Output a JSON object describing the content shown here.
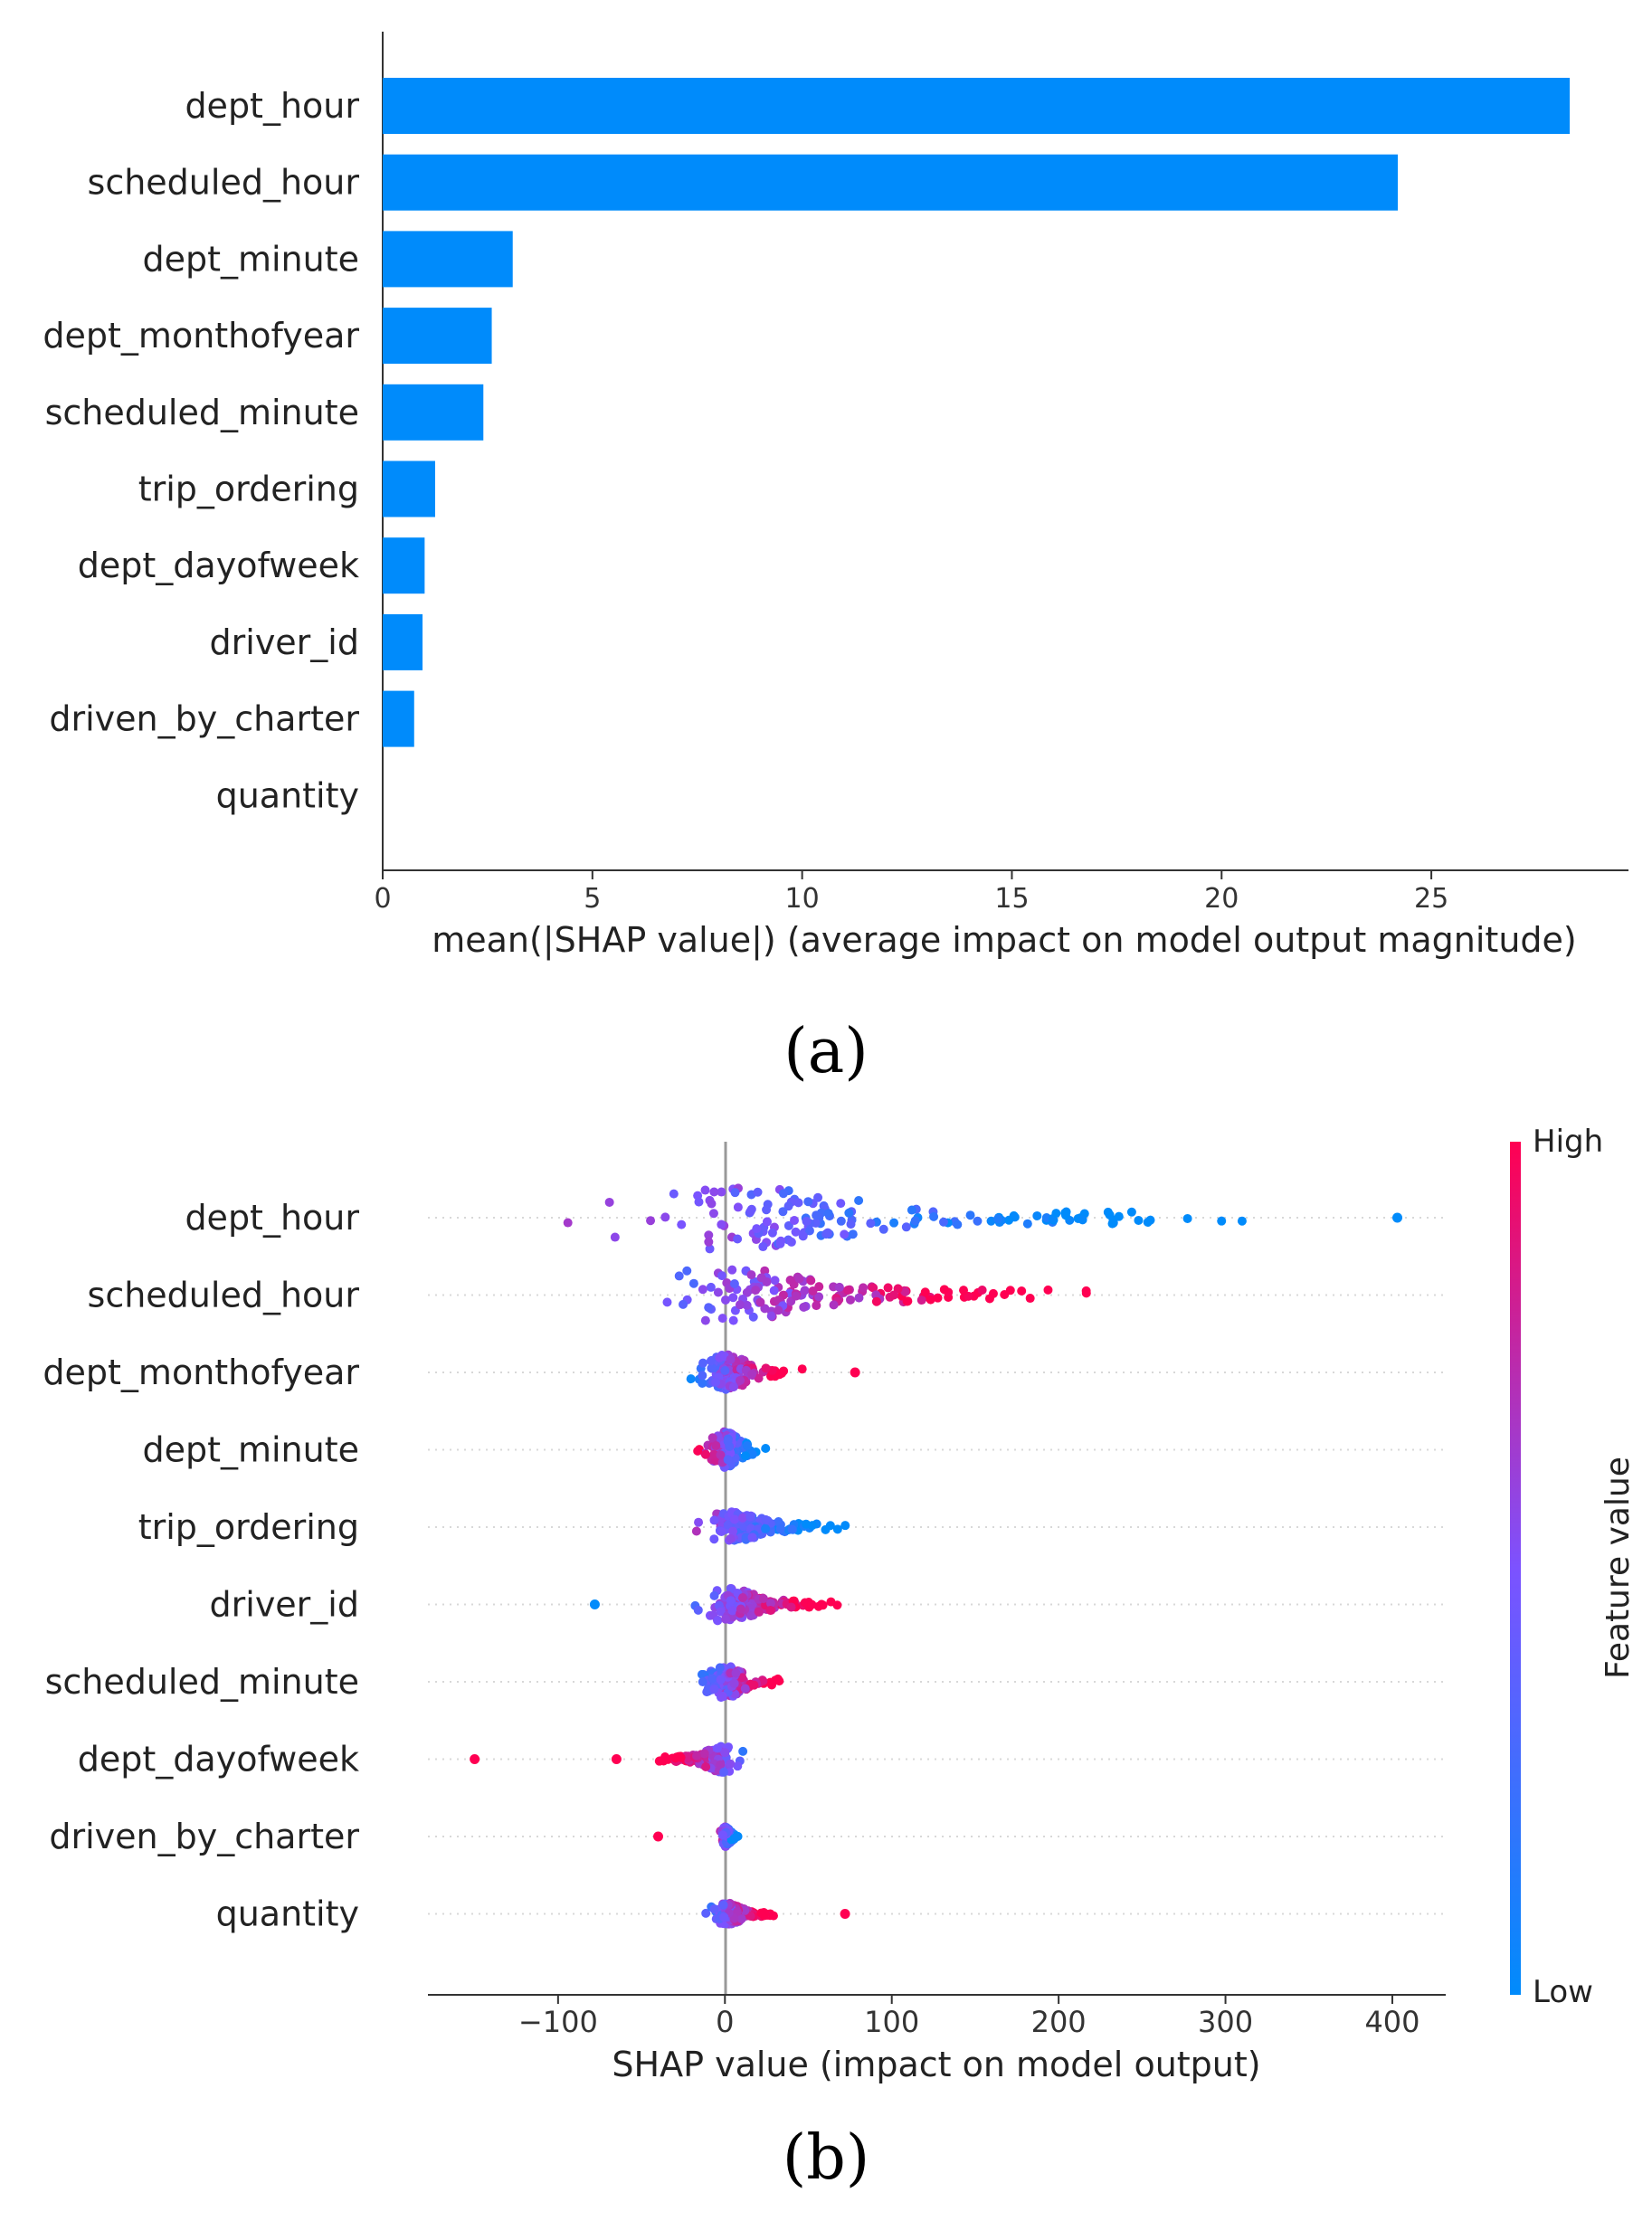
{
  "chart_data": [
    {
      "panel_label": "(a)",
      "type": "bar",
      "orientation": "horizontal",
      "categories": [
        "dept_hour",
        "scheduled_hour",
        "dept_minute",
        "dept_monthofyear",
        "scheduled_minute",
        "trip_ordering",
        "dept_dayofweek",
        "driver_id",
        "driven_by_charter",
        "quantity"
      ],
      "values": [
        28.3,
        24.2,
        3.1,
        2.6,
        2.4,
        1.25,
        1.0,
        0.95,
        0.75,
        0.0
      ],
      "xlabel": "mean(|SHAP value|) (average impact on model output magnitude)",
      "xticks": [
        0,
        5,
        10,
        15,
        20,
        25
      ],
      "xlim": [
        0,
        29.7
      ],
      "bar_color": "#008bfb",
      "grid": false
    },
    {
      "panel_label": "(b)",
      "type": "scatter",
      "subtype": "beeswarm",
      "categories": [
        "dept_hour",
        "scheduled_hour",
        "dept_monthofyear",
        "dept_minute",
        "trip_ordering",
        "driver_id",
        "scheduled_minute",
        "dept_dayofweek",
        "driven_by_charter",
        "quantity"
      ],
      "ranges": [
        [
          -128,
          352
        ],
        [
          -108,
          255
        ],
        [
          -35,
          50
        ],
        [
          -25,
          28
        ],
        [
          -38,
          92
        ],
        [
          -35,
          82
        ],
        [
          -30,
          45
        ],
        [
          -50,
          18
        ],
        [
          -5,
          10
        ],
        [
          -18,
          40
        ]
      ],
      "outliers": [
        [
          403
        ],
        [],
        [
          78
        ],
        [],
        [],
        [
          -78
        ],
        [],
        [
          -150,
          -65
        ],
        [
          -40
        ],
        [
          72
        ]
      ],
      "xlabel": "SHAP value (impact on model output)",
      "xticks": [
        -100,
        0,
        100,
        200,
        300,
        400
      ],
      "xlim": [
        -178,
        432
      ],
      "colorbar": {
        "label": "Feature value",
        "high": "High",
        "low": "Low",
        "high_color": "#ff0052",
        "low_color": "#008bfb"
      },
      "grid": false
    }
  ]
}
